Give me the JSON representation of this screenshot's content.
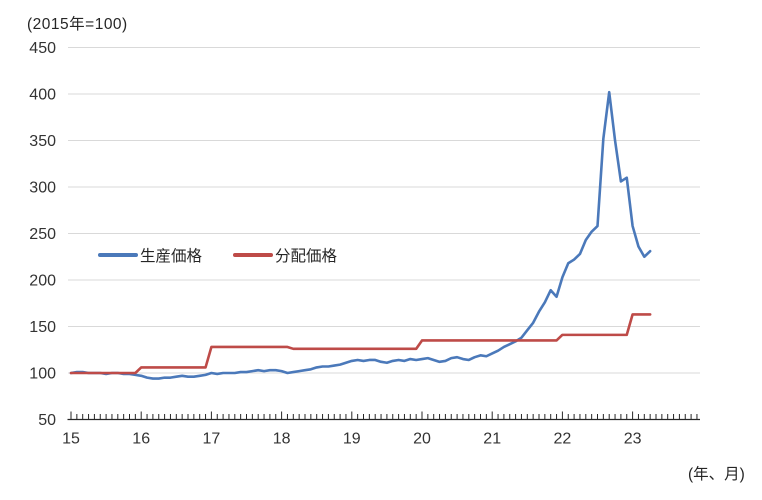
{
  "chart_data": {
    "type": "line",
    "title": "",
    "unit_label": "(2015年=100)",
    "x_unit_label": "(年、月)",
    "ylabel": "",
    "xlabel": "",
    "ylim": [
      50,
      450
    ],
    "y_ticks": [
      450,
      400,
      350,
      300,
      250,
      200,
      150,
      100,
      50
    ],
    "x_tick_labels": [
      "15",
      "16",
      "17",
      "18",
      "19",
      "20",
      "21",
      "22",
      "23"
    ],
    "x_months_span": 108,
    "x_start": "2015-01",
    "x_end": "2023-04",
    "grid": "horizontal-only",
    "legend_position": "inside-upper-left",
    "colors": {
      "gridline": "#d9d9d9",
      "axis": "#262626",
      "label": "#333333"
    },
    "series": [
      {
        "name": "生産価格",
        "color": "#4b79ba",
        "values": [
          100,
          101,
          101,
          100,
          100,
          100,
          99,
          100,
          100,
          99,
          99,
          98,
          97,
          95,
          94,
          94,
          95,
          95,
          96,
          97,
          96,
          96,
          97,
          98,
          100,
          99,
          100,
          100,
          100,
          101,
          101,
          102,
          103,
          102,
          103,
          103,
          102,
          100,
          101,
          102,
          103,
          104,
          106,
          107,
          107,
          108,
          109,
          111,
          113,
          114,
          113,
          114,
          114,
          112,
          111,
          113,
          114,
          113,
          115,
          114,
          115,
          116,
          114,
          112,
          113,
          116,
          117,
          115,
          114,
          117,
          119,
          118,
          121,
          124,
          128,
          131,
          134,
          138,
          146,
          154,
          166,
          176,
          189,
          182,
          203,
          218,
          222,
          228,
          243,
          252,
          258,
          352,
          402,
          350,
          306,
          310,
          258,
          236,
          225,
          231
        ]
      },
      {
        "name": "分配価格",
        "color": "#be4b48",
        "values": [
          100,
          100,
          100,
          100,
          100,
          100,
          100,
          100,
          100,
          100,
          100,
          100,
          106,
          106,
          106,
          106,
          106,
          106,
          106,
          106,
          106,
          106,
          106,
          106,
          128,
          128,
          128,
          128,
          128,
          128,
          128,
          128,
          128,
          128,
          128,
          128,
          128,
          128,
          126,
          126,
          126,
          126,
          126,
          126,
          126,
          126,
          126,
          126,
          126,
          126,
          126,
          126,
          126,
          126,
          126,
          126,
          126,
          126,
          126,
          126,
          135,
          135,
          135,
          135,
          135,
          135,
          135,
          135,
          135,
          135,
          135,
          135,
          135,
          135,
          135,
          135,
          135,
          135,
          135,
          135,
          135,
          135,
          135,
          135,
          141,
          141,
          141,
          141,
          141,
          141,
          141,
          141,
          141,
          141,
          141,
          141,
          163,
          163,
          163,
          163
        ]
      }
    ]
  }
}
